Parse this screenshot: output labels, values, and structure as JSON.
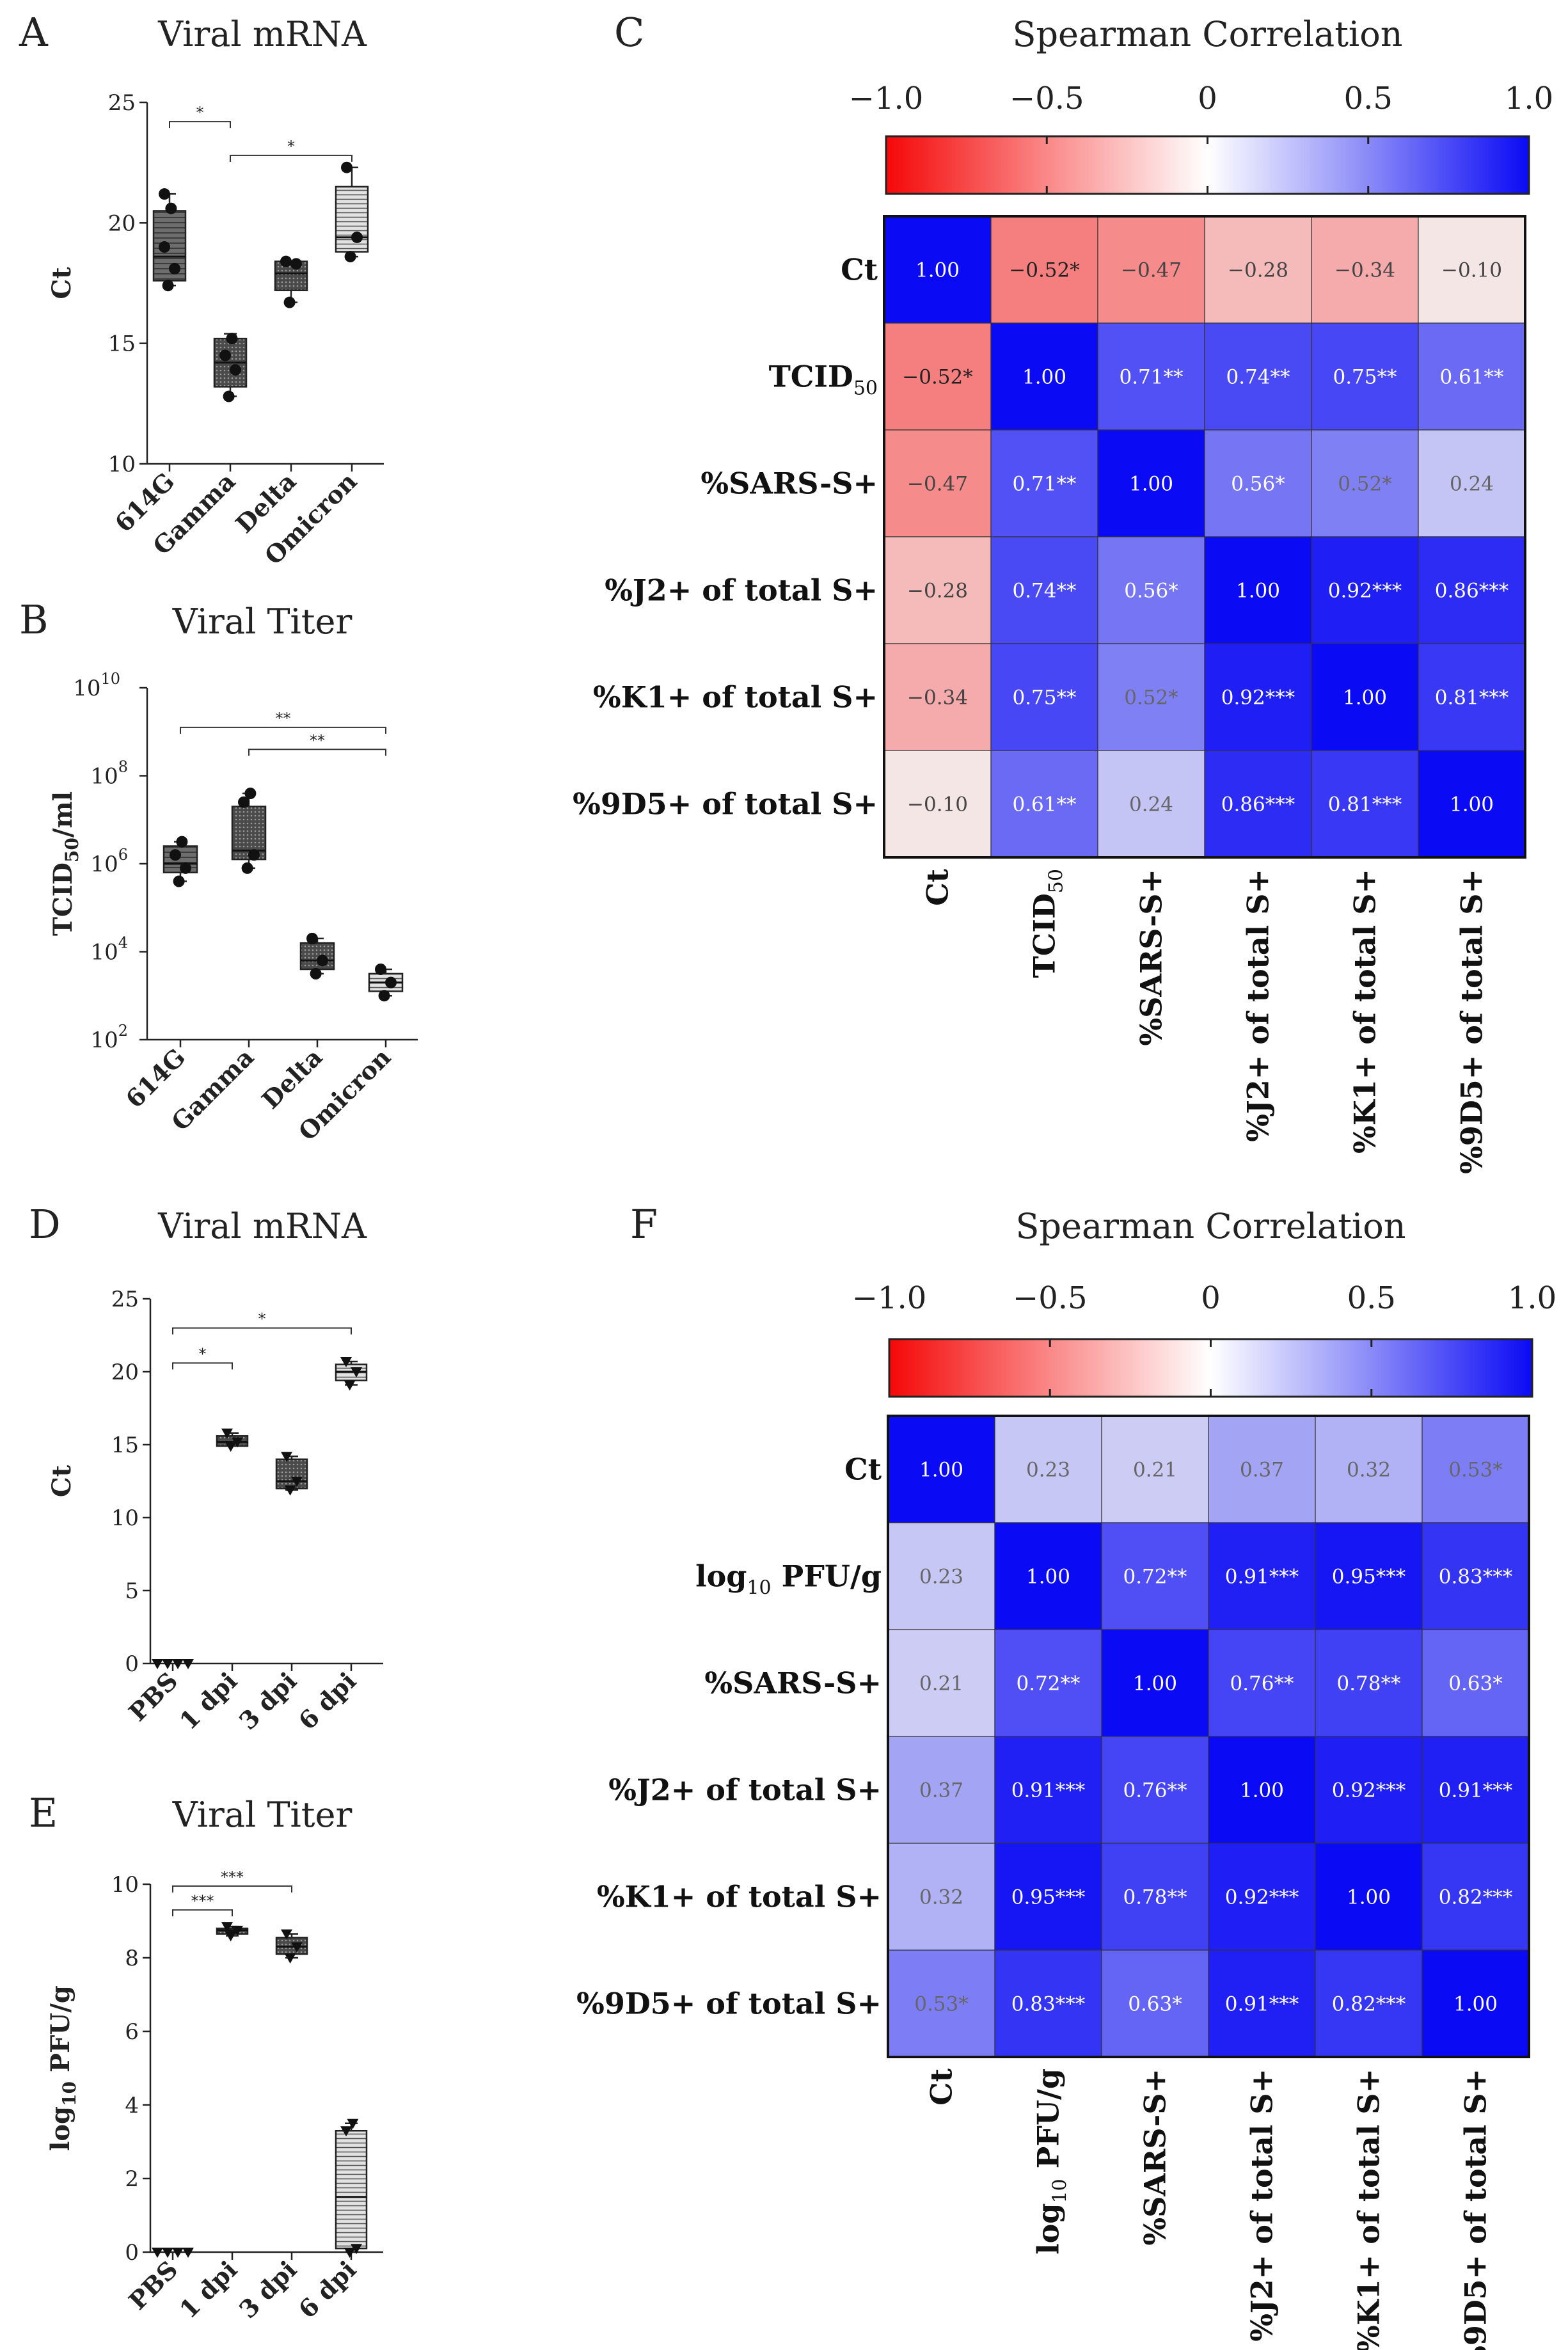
{
  "panels": {
    "A": "A",
    "B": "B",
    "C": "C",
    "D": "D",
    "E": "E",
    "F": "F"
  },
  "chart_data": [
    {
      "id": "A",
      "type": "box",
      "title": "Viral mRNA",
      "ylabel": "Ct",
      "ylim": [
        10,
        25
      ],
      "yscale": "linear",
      "yticks": [
        "10",
        "15",
        "20",
        "25"
      ],
      "categories": [
        "614G",
        "Gamma",
        "Delta",
        "Omicron"
      ],
      "boxes": [
        {
          "min": 17.4,
          "q1": 17.6,
          "median": 18.6,
          "q3": 20.5,
          "max": 21.2,
          "points": [
            17.4,
            18.1,
            19.0,
            20.6,
            21.2
          ]
        },
        {
          "min": 12.8,
          "q1": 13.2,
          "median": 14.2,
          "q3": 15.2,
          "max": 15.4,
          "points": [
            12.8,
            13.9,
            14.5,
            15.2
          ]
        },
        {
          "min": 16.7,
          "q1": 17.2,
          "median": 17.9,
          "q3": 18.4,
          "max": 18.4,
          "points": [
            16.7,
            18.3,
            18.4
          ]
        },
        {
          "min": 18.6,
          "q1": 18.8,
          "median": 19.4,
          "q3": 21.5,
          "max": 22.3,
          "points": [
            18.6,
            19.4,
            22.3
          ]
        }
      ],
      "significance": [
        {
          "from": 0,
          "to": 1,
          "label": "*",
          "y": 24.2
        },
        {
          "from": 1,
          "to": 3,
          "label": "*",
          "y": 22.8
        }
      ]
    },
    {
      "id": "B",
      "type": "box",
      "title": "Viral Titer",
      "ylabel": "TCID50/ml",
      "ylim": [
        2,
        10
      ],
      "yscale": "log10",
      "yticks": [
        "10^2",
        "10^4",
        "10^6",
        "10^8",
        "10^10"
      ],
      "categories": [
        "614G",
        "Gamma",
        "Delta",
        "Omicron"
      ],
      "boxes": [
        {
          "min": 5.6,
          "q1": 5.8,
          "median": 6.0,
          "q3": 6.4,
          "max": 6.5,
          "points": [
            5.6,
            5.9,
            6.2,
            6.5
          ]
        },
        {
          "min": 5.9,
          "q1": 6.1,
          "median": 6.3,
          "q3": 7.3,
          "max": 7.6,
          "points": [
            5.9,
            6.2,
            7.4,
            7.6
          ]
        },
        {
          "min": 3.5,
          "q1": 3.6,
          "median": 3.8,
          "q3": 4.2,
          "max": 4.3,
          "points": [
            3.5,
            3.8,
            4.3
          ]
        },
        {
          "min": 3.0,
          "q1": 3.1,
          "median": 3.3,
          "q3": 3.5,
          "max": 3.6,
          "points": [
            3.0,
            3.3,
            3.6
          ]
        }
      ],
      "significance": [
        {
          "from": 0,
          "to": 3,
          "label": "**",
          "y": 9.1
        },
        {
          "from": 1,
          "to": 3,
          "label": "**",
          "y": 8.6
        }
      ]
    },
    {
      "id": "C",
      "type": "heatmap",
      "title": "Spearman Correlation",
      "colorbar_ticks": [
        "−1.0",
        "−0.5",
        "0",
        "0.5",
        "1.0"
      ],
      "rows": [
        {
          "label": "Ct",
          "sub": ""
        },
        {
          "label": "TCID",
          "sub": "50"
        },
        {
          "label": "%SARS-S+",
          "sub": ""
        },
        {
          "label": "%J2+ of total S+",
          "sub": ""
        },
        {
          "label": "%K1+ of total S+",
          "sub": ""
        },
        {
          "label": "%9D5+ of total S+",
          "sub": ""
        }
      ],
      "values": [
        [
          1.0,
          -0.52,
          -0.47,
          -0.28,
          -0.34,
          -0.1
        ],
        [
          -0.52,
          1.0,
          0.71,
          0.74,
          0.75,
          0.61
        ],
        [
          -0.47,
          0.71,
          1.0,
          0.56,
          0.52,
          0.24
        ],
        [
          -0.28,
          0.74,
          0.56,
          1.0,
          0.92,
          0.86
        ],
        [
          -0.34,
          0.75,
          0.52,
          0.92,
          1.0,
          0.81
        ],
        [
          -0.1,
          0.61,
          0.24,
          0.86,
          0.81,
          1.0
        ]
      ],
      "labels": [
        [
          "1.00",
          "−0.52*",
          "−0.47",
          "−0.28",
          "−0.34",
          "−0.10"
        ],
        [
          "−0.52*",
          "1.00",
          "0.71**",
          "0.74**",
          "0.75**",
          "0.61**"
        ],
        [
          "−0.47",
          "0.71**",
          "1.00",
          "0.56*",
          "0.52*",
          "0.24"
        ],
        [
          "−0.28",
          "0.74**",
          "0.56*",
          "1.00",
          "0.92***",
          "0.86***"
        ],
        [
          "−0.34",
          "0.75**",
          "0.52*",
          "0.92***",
          "1.00",
          "0.81***"
        ],
        [
          "−0.10",
          "0.61**",
          "0.24",
          "0.86***",
          "0.81***",
          "1.00"
        ]
      ]
    },
    {
      "id": "D",
      "type": "box",
      "title": "Viral mRNA",
      "ylabel": "Ct",
      "ylim": [
        0,
        25
      ],
      "yscale": "linear",
      "yticks": [
        "0",
        "5",
        "10",
        "15",
        "20",
        "25"
      ],
      "categories": [
        "PBS",
        "1 dpi",
        "3 dpi",
        "6 dpi"
      ],
      "boxes": [
        {
          "min": 0,
          "q1": 0,
          "median": 0,
          "q3": 0,
          "max": 0,
          "points": [
            0,
            0,
            0,
            0
          ]
        },
        {
          "min": 14.9,
          "q1": 14.9,
          "median": 15.2,
          "q3": 15.6,
          "max": 15.8,
          "points": [
            14.9,
            15.2,
            15.8
          ]
        },
        {
          "min": 11.9,
          "q1": 12.0,
          "median": 12.5,
          "q3": 14.0,
          "max": 14.2,
          "points": [
            11.9,
            12.5,
            14.2
          ]
        },
        {
          "min": 19.1,
          "q1": 19.4,
          "median": 20.0,
          "q3": 20.5,
          "max": 20.7,
          "points": [
            19.1,
            20.0,
            20.7
          ]
        }
      ],
      "significance": [
        {
          "from": 0,
          "to": 1,
          "label": "*",
          "y": 20.6
        },
        {
          "from": 0,
          "to": 3,
          "label": "*",
          "y": 23.0
        }
      ]
    },
    {
      "id": "E",
      "type": "box",
      "title": "Viral Titer",
      "ylabel": "log10 PFU/g",
      "ylim": [
        0,
        10
      ],
      "yscale": "linear",
      "yticks": [
        "0",
        "2",
        "4",
        "6",
        "8",
        "10"
      ],
      "categories": [
        "PBS",
        "1 dpi",
        "3 dpi",
        "6 dpi"
      ],
      "boxes": [
        {
          "min": 0,
          "q1": 0,
          "median": 0,
          "q3": 0,
          "max": 0,
          "points": [
            0,
            0,
            0,
            0
          ]
        },
        {
          "min": 8.6,
          "q1": 8.65,
          "median": 8.75,
          "q3": 8.8,
          "max": 8.85,
          "points": [
            8.6,
            8.75,
            8.85
          ]
        },
        {
          "min": 8.0,
          "q1": 8.1,
          "median": 8.3,
          "q3": 8.55,
          "max": 8.65,
          "points": [
            8.0,
            8.3,
            8.65
          ]
        },
        {
          "min": 0,
          "q1": 0.1,
          "median": 1.5,
          "q3": 3.3,
          "max": 3.5,
          "points": [
            0,
            0.1,
            3.3,
            3.5
          ]
        }
      ],
      "significance": [
        {
          "from": 0,
          "to": 1,
          "label": "***",
          "y": 9.3
        },
        {
          "from": 0,
          "to": 2,
          "label": "***",
          "y": 9.95
        }
      ]
    },
    {
      "id": "F",
      "type": "heatmap",
      "title": "Spearman Correlation",
      "colorbar_ticks": [
        "−1.0",
        "−0.5",
        "0",
        "0.5",
        "1.0"
      ],
      "rows": [
        {
          "label": "Ct",
          "sub": ""
        },
        {
          "label": "log",
          "sub": "10",
          "after": " PFU/g"
        },
        {
          "label": "%SARS-S+",
          "sub": ""
        },
        {
          "label": "%J2+ of total S+",
          "sub": ""
        },
        {
          "label": "%K1+ of total S+",
          "sub": ""
        },
        {
          "label": "%9D5+ of total S+",
          "sub": ""
        }
      ],
      "values": [
        [
          1.0,
          0.23,
          0.21,
          0.37,
          0.32,
          0.53
        ],
        [
          0.23,
          1.0,
          0.72,
          0.91,
          0.95,
          0.83
        ],
        [
          0.21,
          0.72,
          1.0,
          0.76,
          0.78,
          0.63
        ],
        [
          0.37,
          0.91,
          0.76,
          1.0,
          0.92,
          0.91
        ],
        [
          0.32,
          0.95,
          0.78,
          0.92,
          1.0,
          0.82
        ],
        [
          0.53,
          0.83,
          0.63,
          0.91,
          0.82,
          1.0
        ]
      ],
      "labels": [
        [
          "1.00",
          "0.23",
          "0.21",
          "0.37",
          "0.32",
          "0.53*"
        ],
        [
          "0.23",
          "1.00",
          "0.72**",
          "0.91***",
          "0.95***",
          "0.83***"
        ],
        [
          "0.21",
          "0.72**",
          "1.00",
          "0.76**",
          "0.78**",
          "0.63*"
        ],
        [
          "0.37",
          "0.91***",
          "0.76**",
          "1.00",
          "0.92***",
          "0.91***"
        ],
        [
          "0.32",
          "0.95***",
          "0.78**",
          "0.92***",
          "1.00",
          "0.82***"
        ],
        [
          "0.53*",
          "0.83***",
          "0.63*",
          "0.91***",
          "0.82***",
          "1.00"
        ]
      ]
    }
  ]
}
